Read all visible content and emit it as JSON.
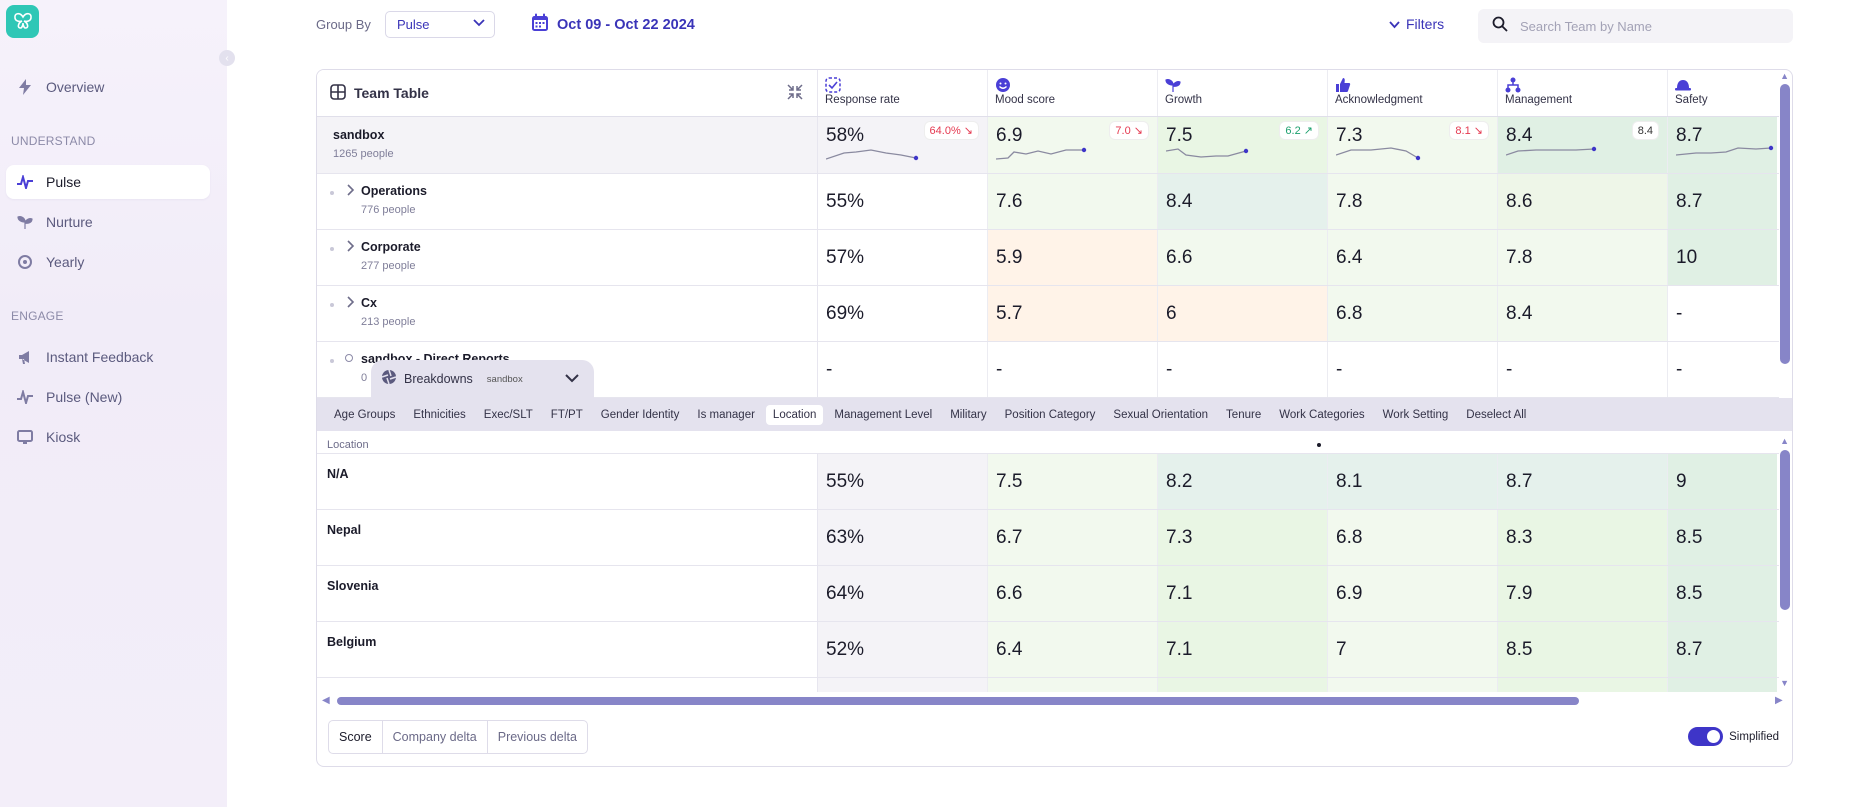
{
  "sidebar": {
    "items": [
      {
        "label": "Overview"
      },
      {
        "label": "Pulse"
      },
      {
        "label": "Nurture"
      },
      {
        "label": "Yearly"
      },
      {
        "label": "Instant Feedback"
      },
      {
        "label": "Pulse (New)"
      },
      {
        "label": "Kiosk"
      }
    ],
    "sections": {
      "understand": "UNDERSTAND",
      "engage": "ENGAGE"
    }
  },
  "toolbar": {
    "group_by_label": "Group By",
    "group_by_value": "Pulse",
    "date_range": "Oct 09 - Oct 22 2024",
    "filters_label": "Filters",
    "search_placeholder": "Search Team by Name"
  },
  "team_table": {
    "title": "Team Table",
    "columns": [
      "Response rate",
      "Mood score",
      "Growth",
      "Acknowledgment",
      "Management",
      "Safety"
    ],
    "summary": {
      "name": "sandbox",
      "sub": "1265 people",
      "values": [
        "58%",
        "6.9",
        "7.5",
        "7.3",
        "8.4",
        "8.7"
      ],
      "badges": [
        "64.0% ↘",
        "7.0 ↘",
        "6.2 ↗",
        "8.1 ↘",
        "8.4",
        ""
      ]
    },
    "rows": [
      {
        "name": "Operations",
        "sub": "776 people",
        "values": [
          "55%",
          "7.6",
          "8.4",
          "7.8",
          "8.6",
          "8.7"
        ]
      },
      {
        "name": "Corporate",
        "sub": "277 people",
        "values": [
          "57%",
          "5.9",
          "6.6",
          "6.4",
          "7.8",
          "10"
        ]
      },
      {
        "name": "Cx",
        "sub": "213 people",
        "values": [
          "69%",
          "5.7",
          "6",
          "6.8",
          "8.4",
          "-"
        ]
      },
      {
        "name": "sandbox - Direct Reports",
        "sub": "0",
        "values": [
          "-",
          "-",
          "-",
          "-",
          "-",
          "-"
        ]
      }
    ]
  },
  "breakdowns": {
    "title": "Breakdowns",
    "team": "sandbox",
    "chips": [
      "Age Groups",
      "Ethnicities",
      "Exec/SLT",
      "FT/PT",
      "Gender Identity",
      "Is manager",
      "Location",
      "Management Level",
      "Military",
      "Position Category",
      "Sexual Orientation",
      "Tenure",
      "Work Categories",
      "Work Setting",
      "Deselect All"
    ],
    "active_chip": "Location",
    "group_label": "Location",
    "rows": [
      {
        "name": "N/A",
        "values": [
          "55%",
          "7.5",
          "8.2",
          "8.1",
          "8.7",
          "9"
        ]
      },
      {
        "name": "Nepal",
        "values": [
          "63%",
          "6.7",
          "7.3",
          "6.8",
          "8.3",
          "8.5"
        ]
      },
      {
        "name": "Slovenia",
        "values": [
          "64%",
          "6.6",
          "7.1",
          "6.9",
          "7.9",
          "8.5"
        ]
      },
      {
        "name": "Belgium",
        "values": [
          "52%",
          "6.4",
          "7.1",
          "7",
          "8.5",
          "8.7"
        ]
      }
    ]
  },
  "view_modes": [
    "Score",
    "Company delta",
    "Previous delta"
  ],
  "active_view": "Score",
  "simplified_label": "Simplified",
  "simplified_on": true,
  "colors": {
    "accent": "#3e35c8",
    "brand": "#2fc7b6",
    "negative": "#e53950",
    "positive": "#1da06e"
  }
}
